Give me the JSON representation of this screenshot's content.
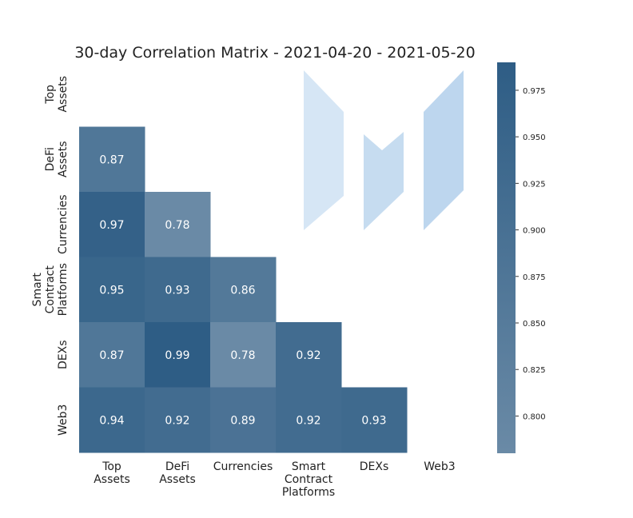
{
  "chart_data": {
    "type": "heatmap",
    "title": "30-day Correlation Matrix - 2021-04-20 - 2021-05-20",
    "xlabel": "",
    "ylabel": "",
    "row_labels": [
      [
        "Top",
        "Assets"
      ],
      [
        "DeFi",
        "Assets"
      ],
      [
        "Currencies"
      ],
      [
        "Smart",
        "Contract",
        "Platforms"
      ],
      [
        "DEXs"
      ],
      [
        "Web3"
      ]
    ],
    "col_labels": [
      [
        "Top",
        "Assets"
      ],
      [
        "DeFi",
        "Assets"
      ],
      [
        "Currencies"
      ],
      [
        "Smart",
        "Contract",
        "Platforms"
      ],
      [
        "DEXs"
      ],
      [
        "Web3"
      ]
    ],
    "values": [
      [
        null,
        null,
        null,
        null,
        null,
        null
      ],
      [
        0.87,
        null,
        null,
        null,
        null,
        null
      ],
      [
        0.97,
        0.78,
        null,
        null,
        null,
        null
      ],
      [
        0.95,
        0.93,
        0.86,
        null,
        null,
        null
      ],
      [
        0.87,
        0.99,
        0.78,
        0.92,
        null,
        null
      ],
      [
        0.94,
        0.92,
        0.89,
        0.92,
        0.93,
        null
      ]
    ],
    "mask": "upper-triangle",
    "colorbar": {
      "min": 0.78,
      "max": 0.99,
      "ticks": [
        0.8,
        0.825,
        0.85,
        0.875,
        0.9,
        0.925,
        0.95,
        0.975
      ],
      "tick_labels": [
        "0.800",
        "0.825",
        "0.850",
        "0.875",
        "0.900",
        "0.925",
        "0.950",
        "0.975"
      ],
      "color_low": "#6a8aa6",
      "color_high": "#2e5d85"
    },
    "annotation_color": "#ffffff",
    "grid": false
  }
}
